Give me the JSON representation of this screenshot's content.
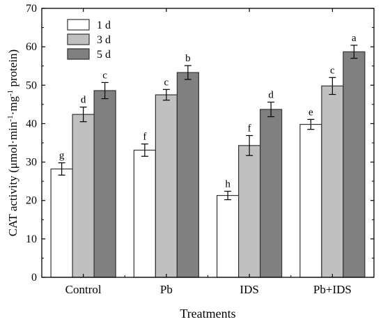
{
  "chart_data": {
    "type": "bar",
    "xlabel": "Treatments",
    "ylabel_parts": {
      "prefix": "CAT activity (μmol·min",
      "sup1": "-1",
      "middle": "·mg",
      "sup2": "-1",
      "suffix": " protein)"
    },
    "ylim": [
      0,
      70
    ],
    "yticks": [
      "0",
      "10",
      "20",
      "30",
      "40",
      "50",
      "60",
      "70"
    ],
    "categories": [
      "Control",
      "Pb",
      "IDS",
      "Pb+IDS"
    ],
    "series": [
      {
        "name": "1 d",
        "color": "#ffffff",
        "values": [
          28.2,
          33.1,
          21.3,
          39.8
        ],
        "errors": [
          1.6,
          1.6,
          1.1,
          1.3
        ],
        "labels": [
          "g",
          "f",
          "h",
          "e"
        ]
      },
      {
        "name": "3 d",
        "color": "#c0c0c0",
        "values": [
          42.4,
          47.5,
          34.3,
          49.8
        ],
        "errors": [
          1.9,
          1.4,
          2.6,
          2.2
        ],
        "labels": [
          "d",
          "c",
          "f",
          "c"
        ]
      },
      {
        "name": "5 d",
        "color": "#808080",
        "values": [
          48.6,
          53.3,
          43.7,
          58.7
        ],
        "errors": [
          2.1,
          1.8,
          1.9,
          1.7
        ],
        "labels": [
          "c",
          "b",
          "d",
          "a"
        ]
      }
    ],
    "legend_position": "top-left"
  }
}
